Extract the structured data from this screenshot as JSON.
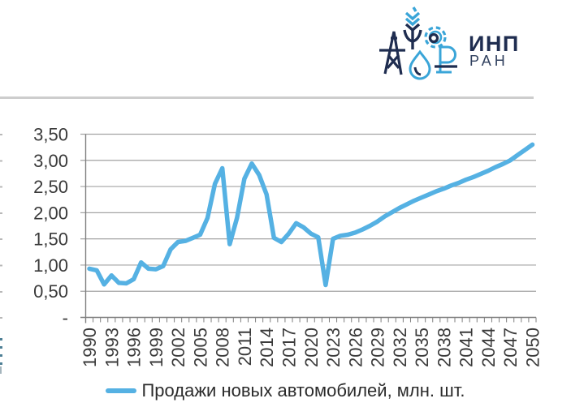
{
  "header": {
    "logo": {
      "org_abbr": "ИНП",
      "org_sub": "РАН",
      "navy": "#1f2d50",
      "blue": "#3aa5d8"
    },
    "divider_color": "#cdcdcd"
  },
  "legend": {
    "label": "Продажи новых автомобилей, млн. шт.",
    "marker_color": "#55b1e3"
  },
  "chart_data": {
    "type": "line",
    "title": "",
    "xlabel": "",
    "ylabel": "",
    "xlim": [
      1990,
      2050
    ],
    "ylim": [
      0,
      3.5
    ],
    "grid": true,
    "legend_position": "bottom",
    "gridline_color": "#a3a3a3",
    "axis_color": "#7f7f7f",
    "label_color": "#3a3a3a",
    "y_ticks": [
      "3,50",
      "3,00",
      "2,50",
      "2,00",
      "1,50",
      "1,00",
      "0,50",
      "-"
    ],
    "y_tick_values": [
      3.5,
      3.0,
      2.5,
      2.0,
      1.5,
      1.0,
      0.5,
      0
    ],
    "x_tick_labels": [
      "1990",
      "1993",
      "1996",
      "1999",
      "2002",
      "2005",
      "2008",
      "2011",
      "2014",
      "2017",
      "2020",
      "2023",
      "2026",
      "2029",
      "2032",
      "2035",
      "2038",
      "2041",
      "2044",
      "2047",
      "2050"
    ],
    "x_tick_step": 3,
    "x_years_start": 1990,
    "series": [
      {
        "name": "Продажи новых автомобилей, млн. шт.",
        "color": "#55b1e3",
        "values": [
          0.93,
          0.9,
          0.63,
          0.8,
          0.66,
          0.65,
          0.73,
          1.05,
          0.93,
          0.92,
          0.98,
          1.3,
          1.44,
          1.46,
          1.52,
          1.58,
          1.9,
          2.55,
          2.85,
          1.4,
          1.9,
          2.65,
          2.94,
          2.72,
          2.35,
          1.52,
          1.44,
          1.6,
          1.8,
          1.72,
          1.6,
          1.53,
          0.62,
          1.5,
          1.56,
          1.58,
          1.62,
          1.68,
          1.75,
          1.83,
          1.93,
          2.01,
          2.09,
          2.16,
          2.23,
          2.29,
          2.35,
          2.41,
          2.46,
          2.52,
          2.57,
          2.63,
          2.68,
          2.74,
          2.8,
          2.87,
          2.93,
          3.0,
          3.1,
          3.2,
          3.3
        ]
      }
    ]
  }
}
